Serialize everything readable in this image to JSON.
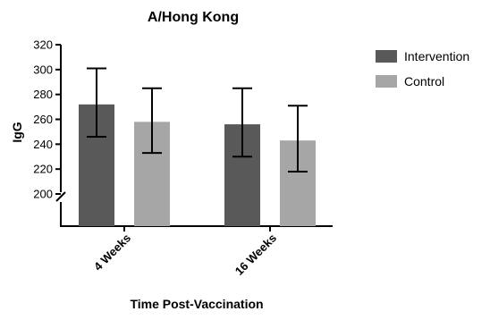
{
  "chart_data": {
    "type": "bar",
    "title": "A/Hong Kong",
    "xlabel": "Time Post-Vaccination",
    "ylabel": "IgG",
    "categories": [
      "4 Weeks",
      "16 Weeks"
    ],
    "ylim": [
      200,
      320
    ],
    "yticks": [
      200,
      220,
      240,
      260,
      280,
      300,
      320
    ],
    "axis_break": true,
    "grid": false,
    "legend_position": "top-right",
    "series": [
      {
        "name": "Intervention",
        "color": "#595959",
        "values": [
          272,
          256
        ],
        "error_low": [
          246,
          230
        ],
        "error_high": [
          301,
          285
        ]
      },
      {
        "name": "Control",
        "color": "#a6a6a6",
        "values": [
          258,
          243
        ],
        "error_low": [
          233,
          218
        ],
        "error_high": [
          285,
          271
        ]
      }
    ]
  }
}
